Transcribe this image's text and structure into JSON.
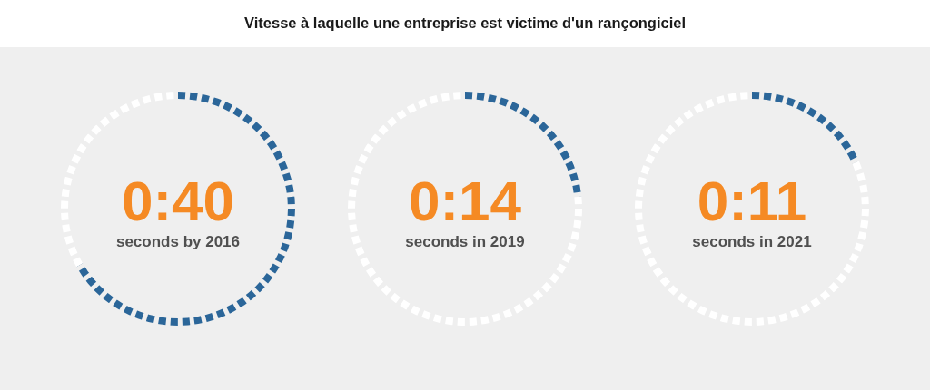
{
  "chart_data": [
    {
      "type": "donut",
      "title": "Vitesse à laquelle une entreprise est victime d'un rançongiciel",
      "categories": [
        null,
        null
      ],
      "values": [
        66.7,
        33.3
      ],
      "colors": [
        "#2b6699",
        "#ffffff"
      ],
      "annotations": [
        "0:40",
        "seconds by 2016"
      ]
    },
    {
      "type": "donut",
      "categories": [
        null,
        null
      ],
      "values": [
        23.3,
        76.7
      ],
      "colors": [
        "#2b6699",
        "#ffffff"
      ],
      "annotations": [
        "0:14",
        "seconds in 2019"
      ]
    },
    {
      "type": "donut",
      "categories": [
        null,
        null
      ],
      "values": [
        18.3,
        81.7
      ],
      "colors": [
        "#2b6699",
        "#ffffff"
      ],
      "annotations": [
        "0:11",
        "seconds in 2021"
      ]
    }
  ]
}
